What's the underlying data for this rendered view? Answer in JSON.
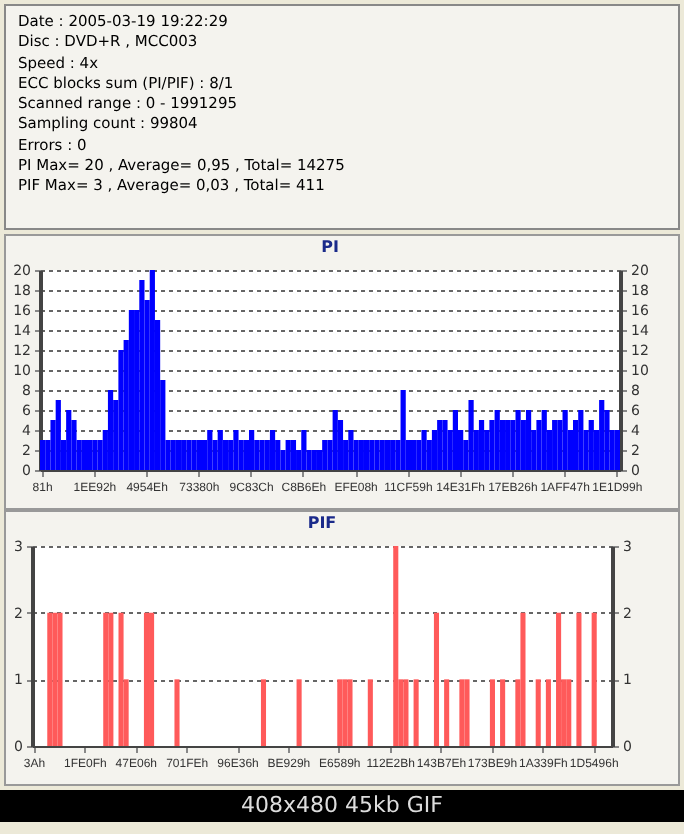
{
  "chart_data": [
    {
      "type": "other",
      "annotations": [
        "Date : 2005-03-19 19:22:29",
        "Disc : DVD+R , MCC003",
        "Speed : 4x",
        "ECC blocks sum (PI/PIF) : 8/1",
        "Scanned range : 0 - 1991295",
        "Sampling count : 99804",
        "Errors : 0",
        "PI Max= 20 , Average= 0,95 , Total= 14275",
        "PIF Max= 3 , Average= 0,03 , Total= 411"
      ]
    },
    {
      "type": "bar",
      "title": "PI",
      "categories": [
        "81h",
        null,
        null,
        null,
        null,
        null,
        null,
        null,
        null,
        null,
        "1EE92h",
        null,
        null,
        null,
        null,
        null,
        null,
        null,
        null,
        null,
        "4954Eh",
        null,
        null,
        null,
        null,
        null,
        null,
        null,
        null,
        null,
        "73380h",
        null,
        null,
        null,
        null,
        null,
        null,
        null,
        null,
        null,
        "9C83Ch",
        null,
        null,
        null,
        null,
        null,
        null,
        null,
        null,
        null,
        "C8B6Eh",
        null,
        null,
        null,
        null,
        null,
        null,
        null,
        null,
        null,
        "EFE08h",
        null,
        null,
        null,
        null,
        null,
        null,
        null,
        null,
        null,
        "11CF59h",
        null,
        null,
        null,
        null,
        null,
        null,
        null,
        null,
        null,
        "14E31Fh",
        null,
        null,
        null,
        null,
        null,
        null,
        null,
        null,
        null,
        "17EB26h",
        null,
        null,
        null,
        null,
        null,
        null,
        null,
        null,
        null,
        "1AFF47h",
        null,
        null,
        null,
        null,
        null,
        null,
        null,
        null,
        null,
        "1E1D99h"
      ],
      "series": [
        {
          "color": "#0000ff",
          "values": [
            3,
            3,
            5,
            7,
            3,
            6,
            5,
            3,
            3,
            3,
            3,
            3,
            4,
            8,
            7,
            12,
            13,
            16,
            16,
            19,
            17,
            20,
            15,
            9,
            3,
            3,
            3,
            3,
            3,
            3,
            3,
            3,
            4,
            3,
            4,
            3,
            3,
            4,
            3,
            3,
            4,
            3,
            3,
            3,
            4,
            3,
            2,
            3,
            3,
            2,
            4,
            2,
            2,
            2,
            3,
            3,
            6,
            5,
            3,
            4,
            3,
            3,
            3,
            3,
            3,
            3,
            3,
            3,
            3,
            8,
            3,
            3,
            3,
            4,
            3,
            4,
            5,
            5,
            4,
            6,
            4,
            3,
            7,
            4,
            5,
            4,
            5,
            6,
            5,
            5,
            5,
            6,
            5,
            6,
            4,
            5,
            6,
            4,
            5,
            5,
            6,
            4,
            5,
            6,
            4,
            5,
            4,
            7,
            6,
            4,
            4
          ]
        }
      ],
      "ylim": [
        0,
        20
      ],
      "yticks": [
        0,
        2,
        4,
        6,
        8,
        10,
        12,
        14,
        16,
        18,
        20
      ],
      "y2lim": [
        0,
        20
      ],
      "y2ticks": [
        0,
        2,
        4,
        6,
        8,
        10,
        12,
        14,
        16,
        18,
        20
      ],
      "grid": "y"
    },
    {
      "type": "bar",
      "title": "PIF",
      "categories": [
        "3Ah",
        null,
        null,
        null,
        null,
        null,
        null,
        null,
        null,
        null,
        "1FE0Fh",
        null,
        null,
        null,
        null,
        null,
        null,
        null,
        null,
        null,
        "47E06h",
        null,
        null,
        null,
        null,
        null,
        null,
        null,
        null,
        null,
        "701FEh",
        null,
        null,
        null,
        null,
        null,
        null,
        null,
        null,
        null,
        "96E36h",
        null,
        null,
        null,
        null,
        null,
        null,
        null,
        null,
        null,
        "BE929h",
        null,
        null,
        null,
        null,
        null,
        null,
        null,
        null,
        null,
        "E6589h",
        null,
        null,
        null,
        null,
        null,
        null,
        null,
        null,
        null,
        "112E2Bh",
        null,
        null,
        null,
        null,
        null,
        null,
        null,
        null,
        null,
        "143B7Eh",
        null,
        null,
        null,
        null,
        null,
        null,
        null,
        null,
        null,
        "173BE9h",
        null,
        null,
        null,
        null,
        null,
        null,
        null,
        null,
        null,
        "1A339Fh",
        null,
        null,
        null,
        null,
        null,
        null,
        null,
        null,
        null,
        "1D5496h",
        null,
        null,
        null
      ],
      "series": [
        {
          "color": "#ff5a5a",
          "values": [
            0,
            0,
            0,
            2,
            2,
            2,
            0,
            0,
            0,
            0,
            0,
            0,
            0,
            0,
            2,
            2,
            0,
            2,
            1,
            0,
            0,
            0,
            2,
            2,
            0,
            0,
            0,
            0,
            1,
            0,
            0,
            0,
            0,
            0,
            0,
            0,
            0,
            0,
            0,
            0,
            0,
            0,
            0,
            0,
            0,
            1,
            0,
            0,
            0,
            0,
            0,
            0,
            1,
            0,
            0,
            0,
            0,
            0,
            0,
            0,
            1,
            1,
            1,
            0,
            0,
            0,
            1,
            0,
            0,
            0,
            0,
            3,
            1,
            1,
            0,
            1,
            0,
            0,
            0,
            2,
            0,
            1,
            0,
            0,
            1,
            1,
            0,
            0,
            0,
            0,
            1,
            0,
            1,
            0,
            0,
            1,
            2,
            0,
            0,
            1,
            0,
            1,
            0,
            2,
            1,
            1,
            0,
            2,
            0,
            0,
            2,
            0,
            0,
            0
          ]
        }
      ],
      "ylim": [
        0,
        3
      ],
      "yticks": [
        0,
        1,
        2,
        3
      ],
      "y2lim": [
        0,
        3
      ],
      "y2ticks": [
        0,
        1,
        2,
        3
      ],
      "grid": "y",
      "annotations": [
        "408x480 45kb GIF"
      ]
    }
  ]
}
